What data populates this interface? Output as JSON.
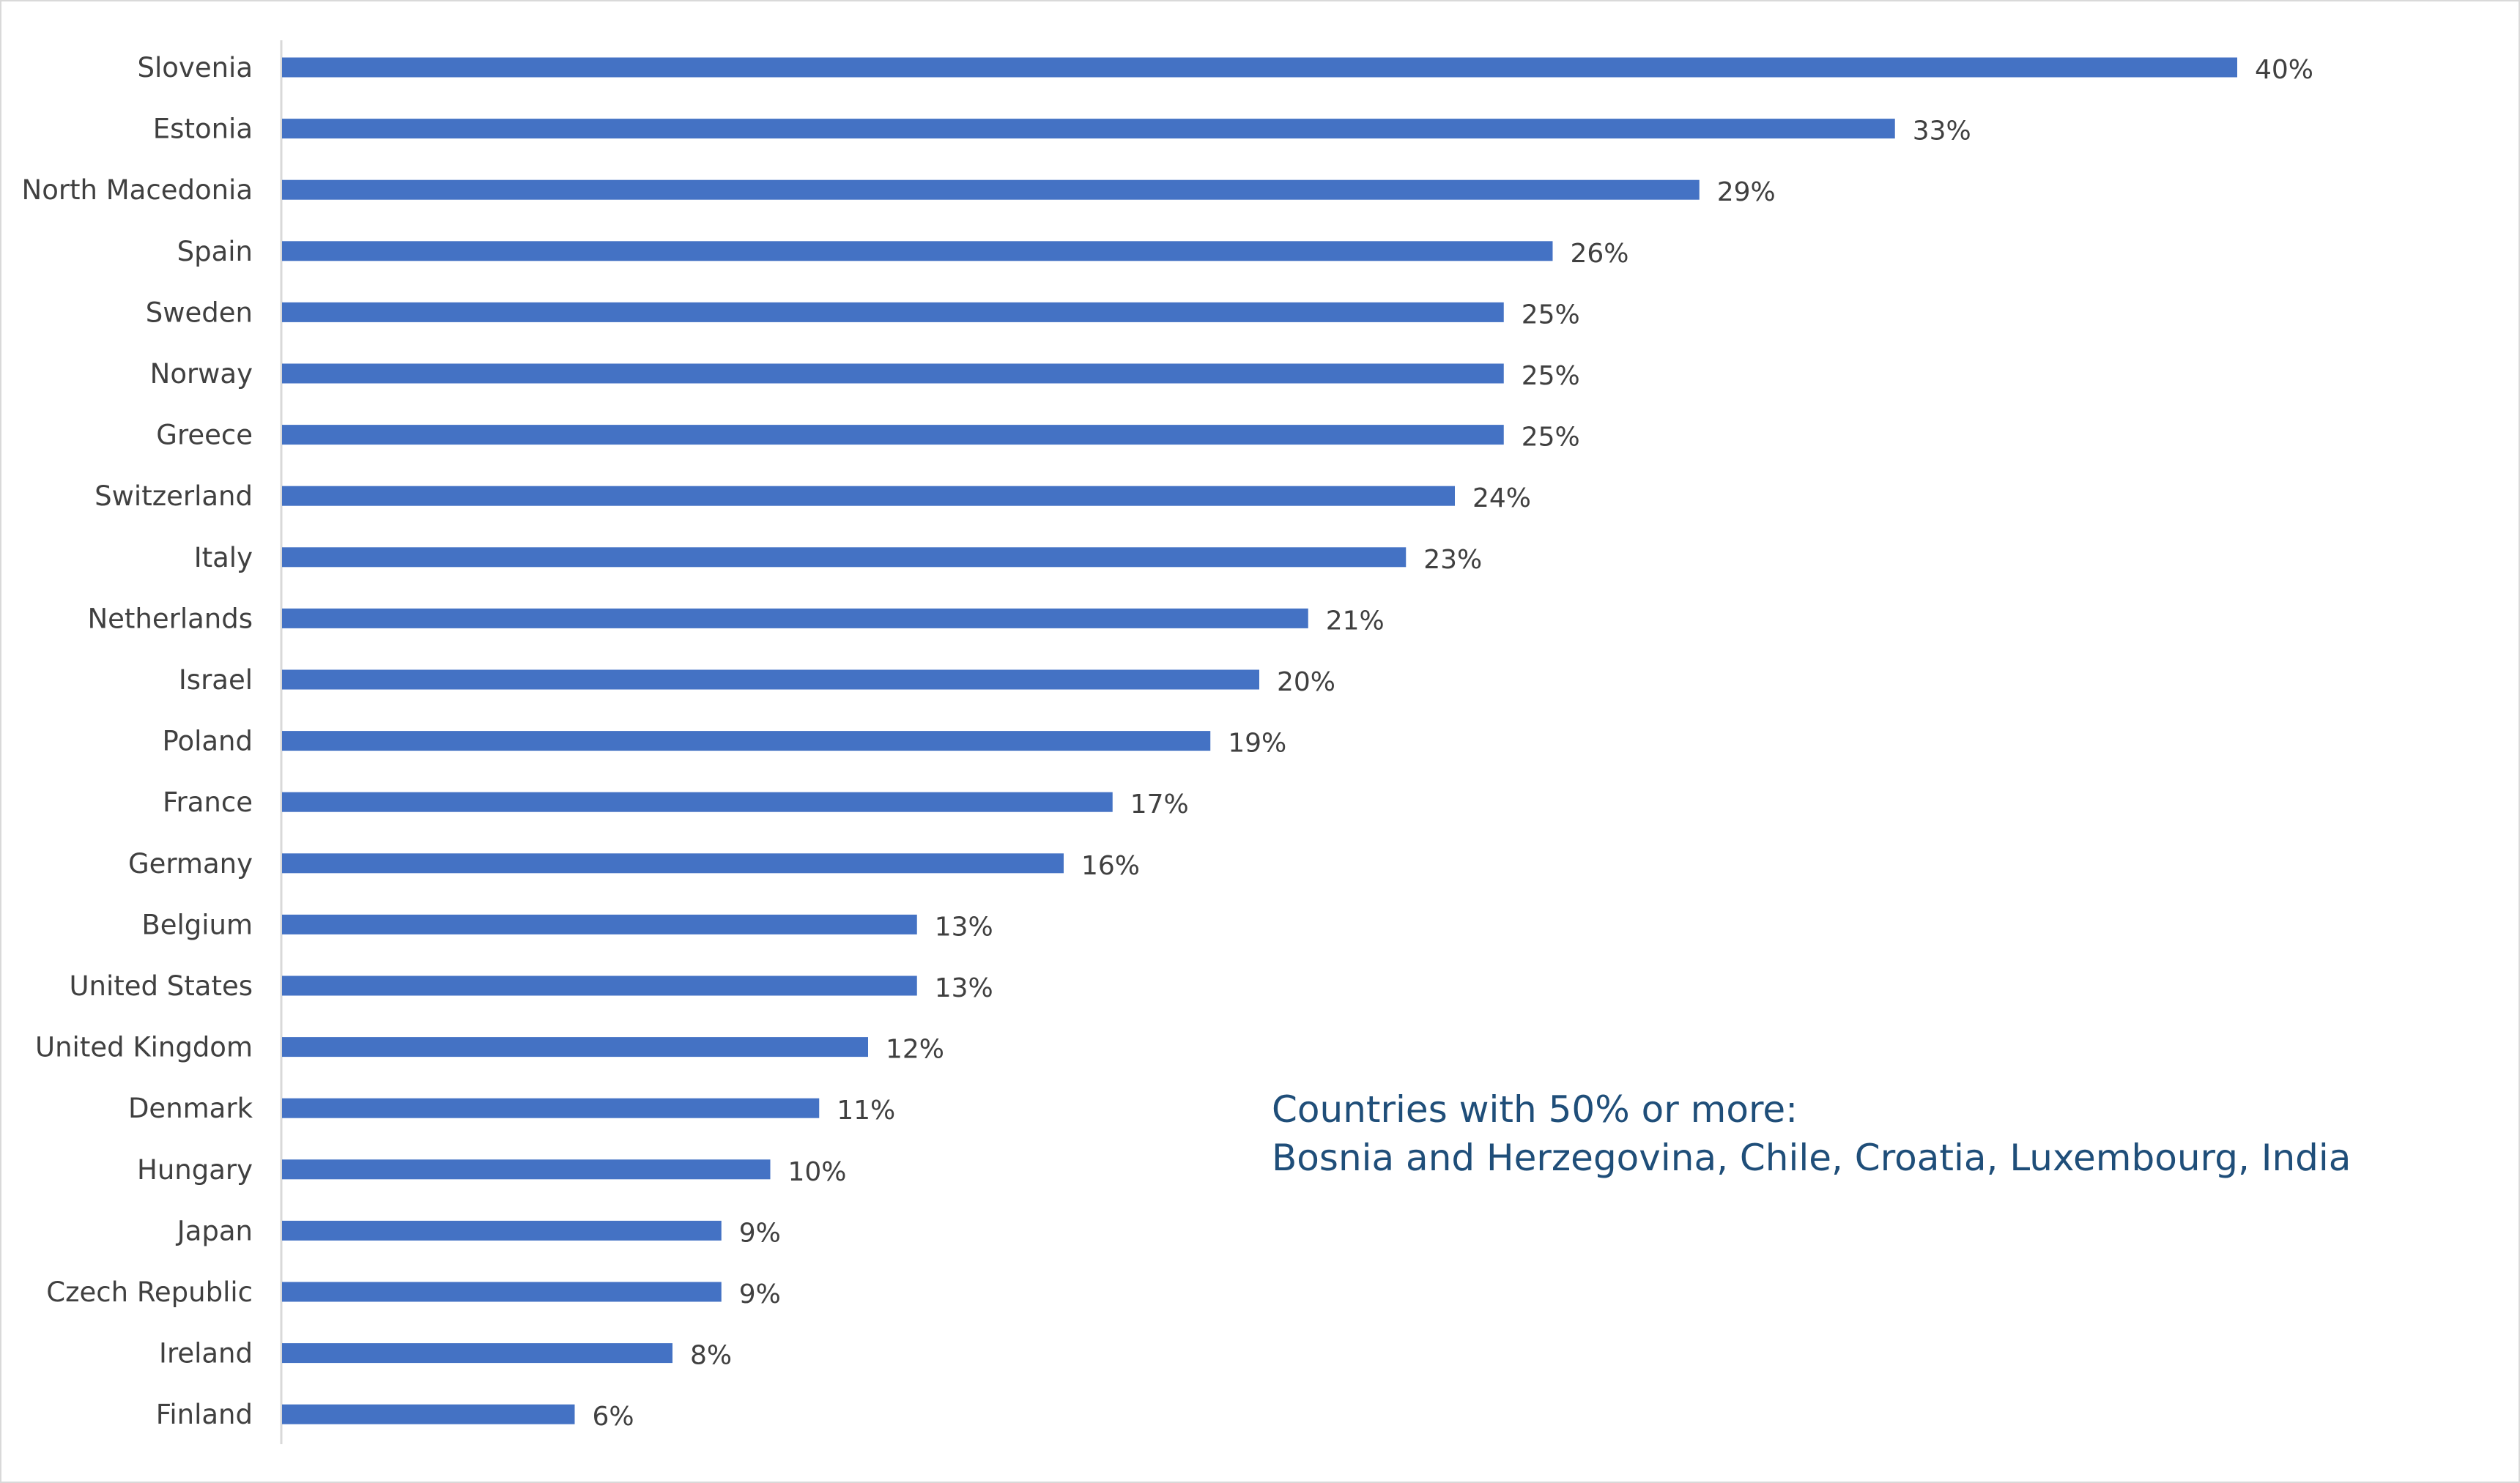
{
  "chart_data": {
    "type": "bar",
    "orientation": "horizontal",
    "categories": [
      "Slovenia",
      "Estonia",
      "North Macedonia",
      "Spain",
      "Sweden",
      "Norway",
      "Greece",
      "Switzerland",
      "Italy",
      "Netherlands",
      "Israel",
      "Poland",
      "France",
      "Germany",
      "Belgium",
      "United States",
      "United Kingdom",
      "Denmark",
      "Hungary",
      "Japan",
      "Czech Republic",
      "Ireland",
      "Finland"
    ],
    "values": [
      40,
      33,
      29,
      26,
      25,
      25,
      25,
      24,
      23,
      21,
      20,
      19,
      17,
      16,
      13,
      13,
      12,
      11,
      10,
      9,
      9,
      8,
      6
    ],
    "data_labels": [
      "40%",
      "33%",
      "29%",
      "26%",
      "25%",
      "25%",
      "25%",
      "24%",
      "23%",
      "21%",
      "20%",
      "19%",
      "17%",
      "16%",
      "13%",
      "13%",
      "12%",
      "11%",
      "10%",
      "9%",
      "9%",
      "8%",
      "6%"
    ],
    "unit": "%",
    "title": "",
    "xlabel": "",
    "ylabel": "",
    "xlim": [
      0,
      40
    ],
    "grid": false,
    "legend": "none",
    "bar_color": "#4472c4",
    "annotation": {
      "heading": "Countries with 50% or more:",
      "text": "Bosnia and Herzegovina, Chile, Croatia, Luxembourg, India",
      "color": "#1f4e79"
    }
  }
}
